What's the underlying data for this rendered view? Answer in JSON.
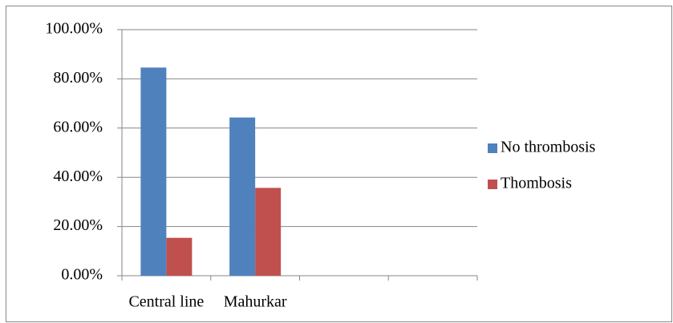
{
  "chart_data": {
    "type": "bar",
    "categories": [
      "Central line",
      "Mahurkar",
      null,
      null
    ],
    "series": [
      {
        "name": "No thrombosis",
        "color": "#4f81bd",
        "values": [
          84.6,
          64.3,
          null,
          null
        ]
      },
      {
        "name": "Thombosis",
        "color": "#c0504d",
        "values": [
          15.4,
          35.7,
          null,
          null
        ]
      }
    ],
    "ylim": [
      0,
      100
    ],
    "yticks": [
      {
        "value": 0,
        "label": "0.00%"
      },
      {
        "value": 20,
        "label": "20.00%"
      },
      {
        "value": 40,
        "label": "40.00%"
      },
      {
        "value": 60,
        "label": "60.00%"
      },
      {
        "value": 80,
        "label": "80.00%"
      },
      {
        "value": 100,
        "label": "100.00%"
      }
    ],
    "grid": true,
    "legend": "right"
  }
}
